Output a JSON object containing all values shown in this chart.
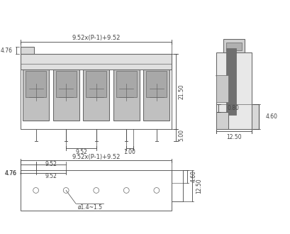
{
  "lc": "#666666",
  "dc": "#444444",
  "lw": 0.75,
  "tlw": 0.5,
  "n_slots": 5,
  "ann": {
    "top_dim": "9.52x(P-1)+9.52",
    "left_4_76": "4.76",
    "h_21_50": "21.50",
    "h_5_00": "5.00",
    "pitch_9_52": "9.52",
    "w_1_00": "1.00",
    "side_0_80": "0.80",
    "side_4_60": "4.60",
    "side_12_50": "12.50",
    "bot_top_dim": "9.52x(P-1)+9.52",
    "bot_4_76": "4.76",
    "bot_9_52": "9.52",
    "bot_hole": "ø1.4~1.5",
    "bot_4_60": "4.60",
    "bot_12_50": "12.50"
  }
}
